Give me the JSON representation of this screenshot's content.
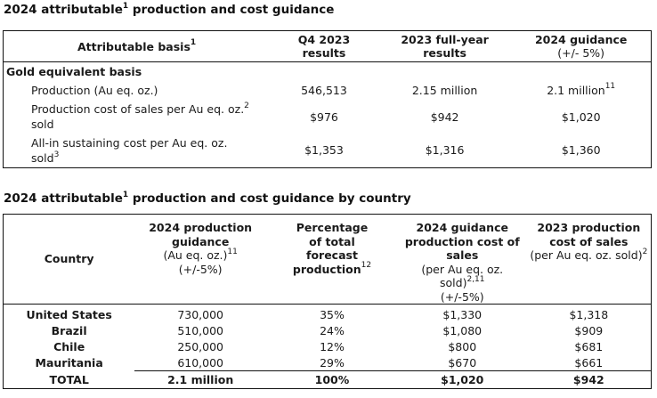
{
  "table1": {
    "title": "2024 attributable",
    "title_sup": "1",
    "title_rest": " production and cost guidance",
    "headers": [
      {
        "main": "Attributable basis",
        "sup": "1",
        "sub": ""
      },
      {
        "main": "Q4 2023",
        "line2": "results"
      },
      {
        "main": "2023 full-year",
        "line2": "results"
      },
      {
        "main": "2024 guidance",
        "line2": "(+/- 5%)"
      }
    ],
    "section_label": "Gold equivalent basis",
    "rows": [
      {
        "label": "Production (Au eq. oz.)",
        "label_sup": "",
        "label_line2": "",
        "label_line2_sup": "",
        "q4_2023": "546,513",
        "fy_2023": "2.15 million",
        "guidance_2024": "2.1 million",
        "guidance_sup": "11"
      },
      {
        "label": "Production cost of sales per Au eq. oz.",
        "label_sup": "2",
        "label_line2": "sold",
        "label_line2_sup": "",
        "q4_2023": "$976",
        "fy_2023": "$942",
        "guidance_2024": "$1,020",
        "guidance_sup": ""
      },
      {
        "label": "All-in sustaining cost per Au eq. oz.",
        "label_sup": "",
        "label_line2": "sold",
        "label_line2_sup": "3",
        "q4_2023": "$1,353",
        "fy_2023": "$1,316",
        "guidance_2024": "$1,360",
        "guidance_sup": ""
      }
    ]
  },
  "table2": {
    "title": "2024 attributable",
    "title_sup": "1",
    "title_rest": " production and cost guidance by country",
    "headers": {
      "country": "Country",
      "production_guidance": {
        "line1": "2024 production",
        "line2": "guidance",
        "sub1": "(Au eq. oz.)",
        "sub1_sup": "11",
        "sub2": "(+/-5%)"
      },
      "percentage": {
        "line1": "Percentage",
        "line2": "of total",
        "line3": "forecast",
        "line4": "production",
        "sup": "12"
      },
      "guidance_cost": {
        "line1": "2024 guidance",
        "line2": "production cost of",
        "line3": "sales",
        "sub1": "(per Au eq. oz.",
        "sub2": "sold)",
        "sub2_sup": "2,11",
        "sub3": "(+/-5%)"
      },
      "cost_2023": {
        "line1": "2023 production",
        "line2": "cost of sales",
        "sub1": "(per Au eq. oz. sold)",
        "sub1_sup": "2"
      }
    },
    "rows": [
      {
        "country": "United States",
        "production": "730,000",
        "percentage": "35%",
        "guidance_cost": "$1,330",
        "cost_2023": "$1,318"
      },
      {
        "country": "Brazil",
        "production": "510,000",
        "percentage": "24%",
        "guidance_cost": "$1,080",
        "cost_2023": "$909"
      },
      {
        "country": "Chile",
        "production": "250,000",
        "percentage": "12%",
        "guidance_cost": "$800",
        "cost_2023": "$681"
      },
      {
        "country": "Mauritania",
        "production": "610,000",
        "percentage": "29%",
        "guidance_cost": "$670",
        "cost_2023": "$661"
      }
    ],
    "total": {
      "country": "TOTAL",
      "production": "2.1 million",
      "percentage": "100%",
      "guidance_cost": "$1,020",
      "cost_2023": "$942"
    }
  }
}
